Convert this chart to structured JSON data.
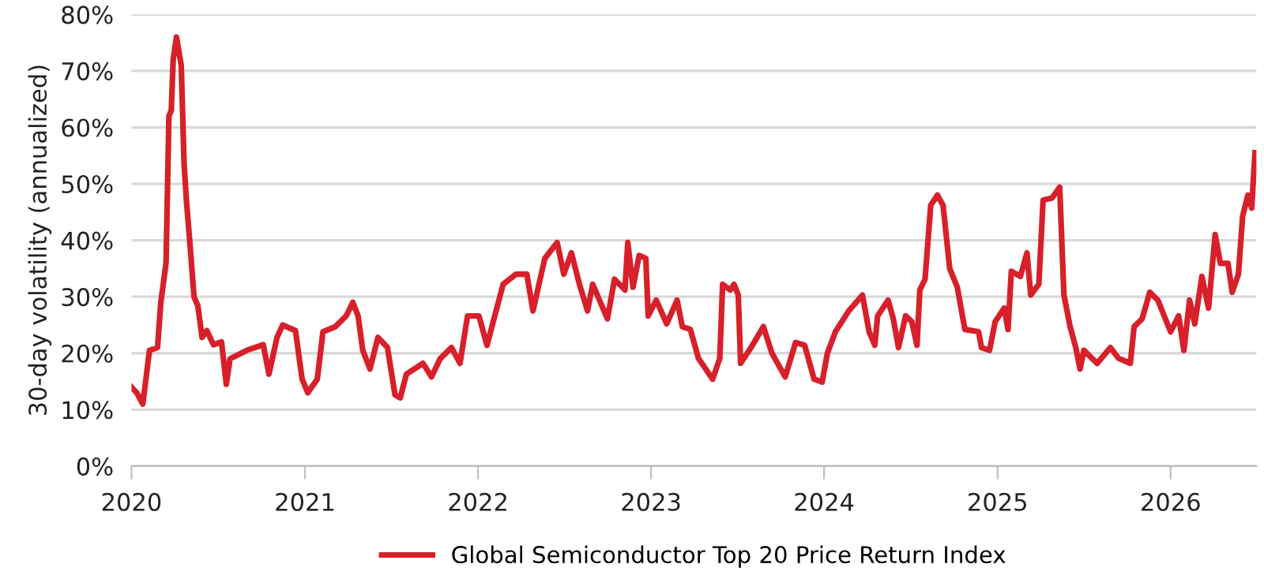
{
  "chart_data": {
    "type": "line",
    "ylabel": "30-day volatility (annualized)",
    "x": [
      "2020-01-01",
      "2020-01-12",
      "2020-01-25",
      "2020-02-08",
      "2020-02-25",
      "2020-03-03",
      "2020-03-14",
      "2020-03-20",
      "2020-03-25",
      "2020-03-29",
      "2020-04-05",
      "2020-04-10",
      "2020-04-15",
      "2020-04-21",
      "2020-04-26",
      "2020-05-04",
      "2020-05-12",
      "2020-05-20",
      "2020-05-29",
      "2020-06-08",
      "2020-06-22",
      "2020-07-09",
      "2020-07-19",
      "2020-07-27",
      "2020-08-31",
      "2020-10-05",
      "2020-10-17",
      "2020-11-03",
      "2020-11-15",
      "2020-12-12",
      "2020-12-26",
      "2021-01-07",
      "2021-01-27",
      "2021-02-08",
      "2021-03-06",
      "2021-03-29",
      "2021-04-12",
      "2021-04-23",
      "2021-05-03",
      "2021-05-18",
      "2021-06-04",
      "2021-06-24",
      "2021-07-10",
      "2021-07-21",
      "2021-08-03",
      "2021-09-07",
      "2021-09-25",
      "2021-10-13",
      "2021-11-06",
      "2021-11-24",
      "2021-12-10",
      "2022-01-03",
      "2022-01-20",
      "2022-02-11",
      "2022-02-23",
      "2022-03-22",
      "2022-04-14",
      "2022-04-27",
      "2022-05-22",
      "2022-06-17",
      "2022-07-01",
      "2022-07-17",
      "2022-08-03",
      "2022-08-20",
      "2022-08-31",
      "2022-10-01",
      "2022-10-16",
      "2022-11-07",
      "2022-11-13",
      "2022-11-24",
      "2022-12-07",
      "2022-12-21",
      "2022-12-26",
      "2023-01-12",
      "2023-02-03",
      "2023-02-25",
      "2023-03-08",
      "2023-03-25",
      "2023-04-11",
      "2023-05-11",
      "2023-05-26",
      "2023-06-01",
      "2023-06-17",
      "2023-06-25",
      "2023-07-04",
      "2023-07-09",
      "2023-07-31",
      "2023-08-26",
      "2023-09-13",
      "2023-10-11",
      "2023-11-02",
      "2023-11-21",
      "2023-12-11",
      "2023-12-28",
      "2024-01-08",
      "2024-01-25",
      "2024-02-22",
      "2024-03-22",
      "2024-04-05",
      "2024-04-17",
      "2024-04-23",
      "2024-05-15",
      "2024-05-26",
      "2024-06-06",
      "2024-06-21",
      "2024-07-04",
      "2024-07-15",
      "2024-07-21",
      "2024-08-01",
      "2024-08-13",
      "2024-08-27",
      "2024-09-08",
      "2024-09-22",
      "2024-10-08",
      "2024-10-24",
      "2024-11-22",
      "2024-11-28",
      "2024-12-15",
      "2024-12-27",
      "2025-01-15",
      "2025-01-23",
      "2025-01-30",
      "2025-02-18",
      "2025-03-04",
      "2025-03-12",
      "2025-03-29",
      "2025-04-07",
      "2025-04-26",
      "2025-05-12",
      "2025-05-21",
      "2025-06-03",
      "2025-06-15",
      "2025-06-24",
      "2025-07-02",
      "2025-07-30",
      "2025-08-27",
      "2025-09-13",
      "2025-10-08",
      "2025-10-16",
      "2025-11-02",
      "2025-11-18",
      "2025-12-05",
      "2026-01-01",
      "2026-01-18",
      "2026-01-29",
      "2026-02-10",
      "2026-02-21",
      "2026-03-08",
      "2026-03-22",
      "2026-04-05",
      "2026-04-16",
      "2026-05-02",
      "2026-05-11",
      "2026-05-24",
      "2026-06-02",
      "2026-06-13",
      "2026-06-21",
      "2026-06-28"
    ],
    "series": [
      {
        "name": "Global Semiconductor Top 20 Price Return Index",
        "color": "#d7202a",
        "values": [
          14,
          13,
          11,
          20.5,
          21,
          29,
          36,
          62,
          63,
          72,
          76,
          73.5,
          71,
          53.6,
          47,
          38.7,
          30,
          28.4,
          22.8,
          24,
          21.5,
          22,
          14.5,
          19,
          20.5,
          21.5,
          16.3,
          22.8,
          25,
          24,
          15.4,
          13,
          15.4,
          23.8,
          24.7,
          26.6,
          29,
          26.6,
          20.5,
          17.2,
          22.8,
          21,
          12.6,
          12.1,
          16.3,
          18.2,
          15.8,
          19,
          21,
          18.2,
          26.6,
          26.6,
          21.4,
          28.4,
          32.2,
          34,
          34,
          27.5,
          36.8,
          39.6,
          34,
          37.8,
          32.2,
          27.5,
          32.2,
          26.1,
          33.1,
          31.2,
          39.6,
          31.7,
          37.3,
          36.8,
          26.6,
          29.4,
          25.2,
          29.4,
          24.7,
          24.2,
          19.1,
          15.4,
          19.1,
          32.2,
          31.2,
          32.2,
          30.3,
          18.2,
          21,
          24.7,
          20,
          15.8,
          21.9,
          21.4,
          15.4,
          14.9,
          20,
          23.8,
          27.5,
          30.3,
          23.8,
          21.4,
          26.6,
          29.4,
          26.1,
          21,
          26.6,
          25.6,
          21.4,
          31.2,
          33.1,
          46.2,
          48,
          46.2,
          35,
          31.7,
          24.2,
          23.8,
          21,
          20.5,
          25.6,
          28,
          24.2,
          34.5,
          33.6,
          37.8,
          30.3,
          32.2,
          47.1,
          47.5,
          49.4,
          30.3,
          24.7,
          21,
          17.2,
          20.5,
          18.2,
          21,
          19.1,
          18.2,
          24.7,
          26.1,
          30.8,
          29.4,
          23.8,
          26.6,
          20.5,
          29.4,
          25.2,
          33.6,
          28,
          41,
          35.9,
          35.9,
          30.8,
          34,
          44.3,
          48,
          45.7,
          55.5
        ]
      }
    ],
    "xlim": [
      "2020-01-01",
      "2026-07-01"
    ],
    "xticks": [
      {
        "value": "2020-01-01",
        "label": "2020"
      },
      {
        "value": "2021-01-01",
        "label": "2021"
      },
      {
        "value": "2022-01-01",
        "label": "2022"
      },
      {
        "value": "2023-01-01",
        "label": "2023"
      },
      {
        "value": "2024-01-01",
        "label": "2024"
      },
      {
        "value": "2025-01-01",
        "label": "2025"
      },
      {
        "value": "2026-01-01",
        "label": "2026"
      }
    ],
    "ylim": [
      0,
      80
    ],
    "yticks": [
      {
        "value": 0,
        "label": "0%"
      },
      {
        "value": 10,
        "label": "10%"
      },
      {
        "value": 20,
        "label": "20%"
      },
      {
        "value": 30,
        "label": "30%"
      },
      {
        "value": 40,
        "label": "40%"
      },
      {
        "value": 50,
        "label": "50%"
      },
      {
        "value": 60,
        "label": "60%"
      },
      {
        "value": 70,
        "label": "70%"
      },
      {
        "value": 80,
        "label": "80%"
      }
    ],
    "grid": "y",
    "legend": "bottom",
    "marker": "none",
    "line_style": "solid"
  }
}
